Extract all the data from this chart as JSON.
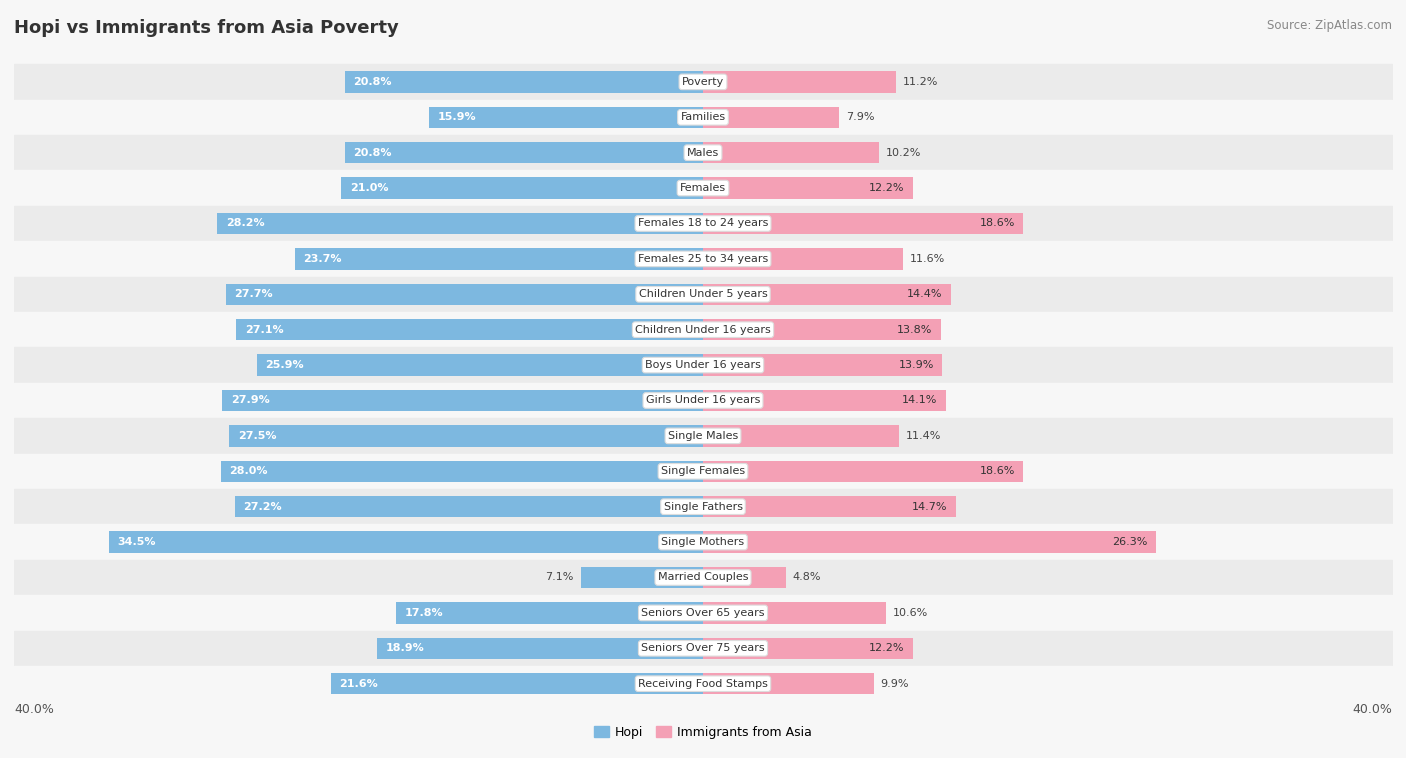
{
  "title": "Hopi vs Immigrants from Asia Poverty",
  "source": "Source: ZipAtlas.com",
  "categories": [
    "Poverty",
    "Families",
    "Males",
    "Females",
    "Females 18 to 24 years",
    "Females 25 to 34 years",
    "Children Under 5 years",
    "Children Under 16 years",
    "Boys Under 16 years",
    "Girls Under 16 years",
    "Single Males",
    "Single Females",
    "Single Fathers",
    "Single Mothers",
    "Married Couples",
    "Seniors Over 65 years",
    "Seniors Over 75 years",
    "Receiving Food Stamps"
  ],
  "hopi_values": [
    20.8,
    15.9,
    20.8,
    21.0,
    28.2,
    23.7,
    27.7,
    27.1,
    25.9,
    27.9,
    27.5,
    28.0,
    27.2,
    34.5,
    7.1,
    17.8,
    18.9,
    21.6
  ],
  "asia_values": [
    11.2,
    7.9,
    10.2,
    12.2,
    18.6,
    11.6,
    14.4,
    13.8,
    13.9,
    14.1,
    11.4,
    18.6,
    14.7,
    26.3,
    4.8,
    10.6,
    12.2,
    9.9
  ],
  "hopi_color": "#7db8e0",
  "asia_color": "#f4a0b5",
  "bg_color": "#f7f7f7",
  "row_color_odd": "#ebebeb",
  "row_color_even": "#f7f7f7",
  "max_val": 40.0,
  "bar_height": 0.6,
  "legend_labels": [
    "Hopi",
    "Immigrants from Asia"
  ]
}
